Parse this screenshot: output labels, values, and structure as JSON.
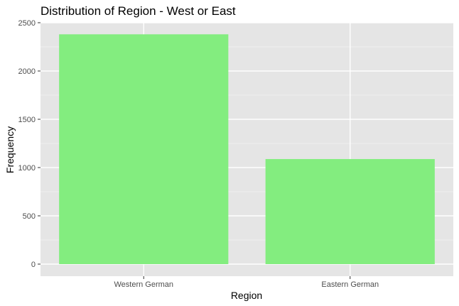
{
  "chart_data": {
    "type": "bar",
    "title": "Distribution of Region - West or East",
    "xlabel": "Region",
    "ylabel": "Frequency",
    "categories": [
      "Western German",
      "Eastern German"
    ],
    "values": [
      2380,
      1088
    ],
    "ylim": [
      0,
      2500
    ],
    "yticks": [
      0,
      500,
      1000,
      1500,
      2000,
      2500
    ],
    "ytick_labels": [
      "0",
      "500",
      "1000",
      "1500",
      "2000",
      "2500"
    ],
    "grid": true,
    "legend": "none",
    "colors": {
      "bar": "#83ed7f",
      "panel_background": "#e5e5e5",
      "grid_major": "#ffffff",
      "grid_minor": "#f2f2f2"
    }
  }
}
